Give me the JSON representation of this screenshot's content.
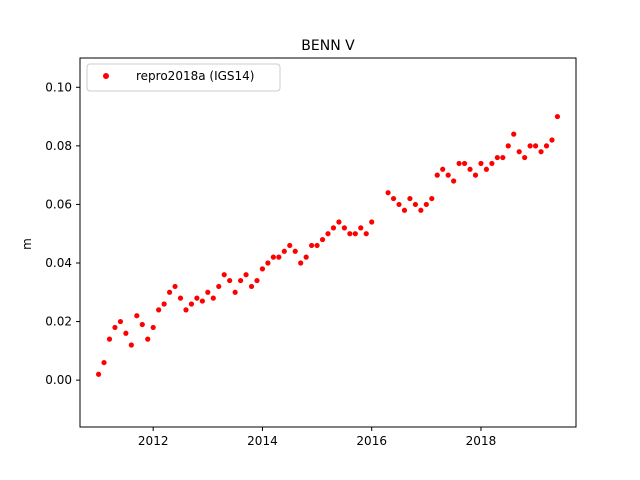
{
  "chart_data": {
    "type": "scatter",
    "title": "BENN V",
    "xlabel": "",
    "ylabel": "m",
    "xlim": [
      2010.66,
      2019.74
    ],
    "ylim": [
      -0.016,
      0.11
    ],
    "x_ticks": [
      {
        "value": 2012,
        "label": "2012"
      },
      {
        "value": 2014,
        "label": "2014"
      },
      {
        "value": 2016,
        "label": "2016"
      },
      {
        "value": 2018,
        "label": "2018"
      }
    ],
    "y_ticks": [
      {
        "value": 0.0,
        "label": "0.00"
      },
      {
        "value": 0.02,
        "label": "0.02"
      },
      {
        "value": 0.04,
        "label": "0.04"
      },
      {
        "value": 0.06,
        "label": "0.06"
      },
      {
        "value": 0.08,
        "label": "0.08"
      },
      {
        "value": 0.1,
        "label": "0.10"
      }
    ],
    "grid": false,
    "legend_position": "top-left",
    "series": [
      {
        "name": "repro2018a (IGS14)",
        "color": "#ff0000",
        "marker": "circle",
        "x": [
          2011.0,
          2011.1,
          2011.2,
          2011.3,
          2011.4,
          2011.5,
          2011.6,
          2011.7,
          2011.8,
          2011.9,
          2012.0,
          2012.1,
          2012.2,
          2012.3,
          2012.4,
          2012.5,
          2012.6,
          2012.7,
          2012.8,
          2012.9,
          2013.0,
          2013.1,
          2013.2,
          2013.3,
          2013.4,
          2013.5,
          2013.6,
          2013.7,
          2013.8,
          2013.9,
          2014.0,
          2014.1,
          2014.2,
          2014.3,
          2014.4,
          2014.5,
          2014.6,
          2014.7,
          2014.8,
          2014.9,
          2015.0,
          2015.1,
          2015.2,
          2015.3,
          2015.4,
          2015.5,
          2015.6,
          2015.7,
          2015.8,
          2015.9,
          2016.0,
          2016.3,
          2016.4,
          2016.5,
          2016.6,
          2016.7,
          2016.8,
          2016.9,
          2017.0,
          2017.1,
          2017.2,
          2017.3,
          2017.4,
          2017.5,
          2017.6,
          2017.7,
          2017.8,
          2017.9,
          2018.0,
          2018.1,
          2018.2,
          2018.3,
          2018.4,
          2018.5,
          2018.6,
          2018.7,
          2018.8,
          2018.9,
          2019.0,
          2019.1,
          2019.2,
          2019.3,
          2019.4
        ],
        "y": [
          0.002,
          0.006,
          0.014,
          0.018,
          0.02,
          0.016,
          0.012,
          0.022,
          0.019,
          0.014,
          0.018,
          0.024,
          0.026,
          0.03,
          0.032,
          0.028,
          0.024,
          0.026,
          0.028,
          0.027,
          0.03,
          0.028,
          0.032,
          0.036,
          0.034,
          0.03,
          0.034,
          0.036,
          0.032,
          0.034,
          0.038,
          0.04,
          0.042,
          0.042,
          0.044,
          0.046,
          0.044,
          0.04,
          0.042,
          0.046,
          0.046,
          0.048,
          0.05,
          0.052,
          0.054,
          0.052,
          0.05,
          0.05,
          0.052,
          0.05,
          0.054,
          0.064,
          0.062,
          0.06,
          0.058,
          0.062,
          0.06,
          0.058,
          0.06,
          0.062,
          0.07,
          0.072,
          0.07,
          0.068,
          0.074,
          0.074,
          0.072,
          0.07,
          0.074,
          0.072,
          0.074,
          0.076,
          0.076,
          0.08,
          0.084,
          0.078,
          0.076,
          0.08,
          0.08,
          0.078,
          0.08,
          0.082,
          0.09
        ]
      }
    ]
  }
}
